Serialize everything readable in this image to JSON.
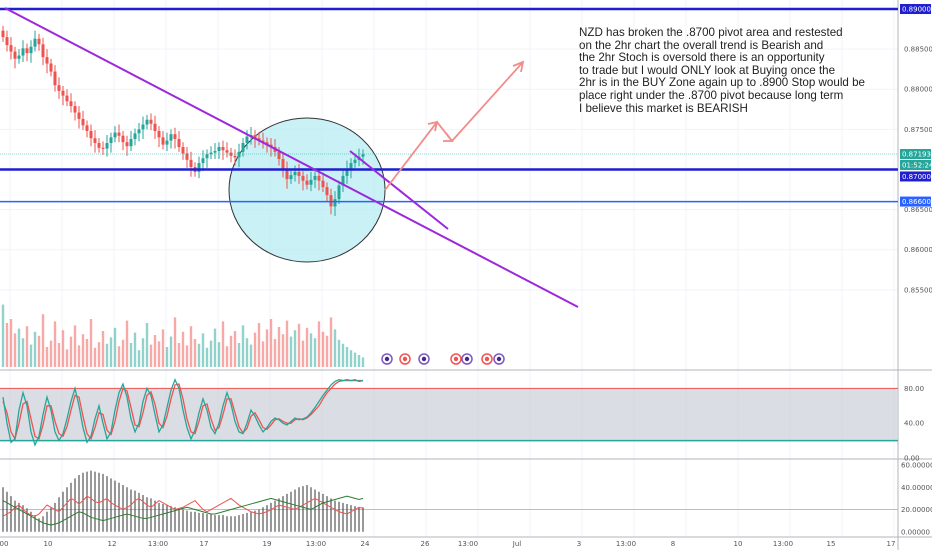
{
  "annotation": "NZD has broken the .8700 pivot area and restested\non the 2hr chart the overall trend is Bearish and\nthe 2hr Stoch is oversold there is an opportunity\nto trade but I would ONLY look at Buying once the\n2hr is in the BUY Zone again up to .8900 Stop would be\nplace right under the .8700 pivot because long term\nI believe this market is BEARISH",
  "colors": {
    "up": "#26a69a",
    "down": "#ef5350",
    "trendline": "#9c27dc",
    "level": "#1f1fd0",
    "level_light": "#2962ff",
    "projection": "#f28b8b",
    "circle_fill": "#b2ebf2",
    "stoch_k": "#26a69a",
    "stoch_d": "#ef5350",
    "stoch_band": "#d1d4dc"
  },
  "chart_data": {
    "type": "candlestick",
    "symbol": "NZD",
    "price_range": [
      0.8475,
      0.8905
    ],
    "price_ticks": [
      "0.88500",
      "0.88000",
      "0.87500",
      "0.86500",
      "0.86000",
      "0.85500"
    ],
    "price_tags": [
      {
        "label": "0.89000",
        "price": 0.89,
        "color": "#1f1fd0"
      },
      {
        "label": "0.87193",
        "price": 0.87193,
        "color": "#26a69a"
      },
      {
        "label": "01:52:24",
        "price": 0.8707,
        "color": "#26a69a"
      },
      {
        "label": "0.87000",
        "price": 0.87,
        "color": "#1f1fd0"
      },
      {
        "label": "0.86600",
        "price": 0.866,
        "color": "#2962ff"
      }
    ],
    "levels": [
      0.89,
      0.87,
      0.866
    ],
    "last_price": 0.87193,
    "x_ticks": [
      "00",
      "10",
      "12",
      "13:00",
      "17",
      "19",
      "13:00",
      "24",
      "26",
      "13:00",
      "Jul",
      "3",
      "13:00",
      "8",
      "10",
      "13:00",
      "15",
      "17"
    ],
    "candles_close": [
      0.8865,
      0.8855,
      0.8847,
      0.8838,
      0.8842,
      0.8851,
      0.8845,
      0.8853,
      0.8863,
      0.8856,
      0.884,
      0.8832,
      0.8822,
      0.8805,
      0.8798,
      0.8792,
      0.8785,
      0.8779,
      0.8771,
      0.8763,
      0.8755,
      0.8748,
      0.8739,
      0.8733,
      0.8727,
      0.8726,
      0.8733,
      0.874,
      0.8746,
      0.8742,
      0.8734,
      0.8729,
      0.8738,
      0.8745,
      0.875,
      0.8756,
      0.8762,
      0.8757,
      0.8748,
      0.874,
      0.8731,
      0.8736,
      0.8744,
      0.8738,
      0.8728,
      0.872,
      0.8712,
      0.8703,
      0.8697,
      0.8708,
      0.8714,
      0.8719,
      0.8721,
      0.8723,
      0.8728,
      0.8724,
      0.8721,
      0.8717,
      0.8715,
      0.8722,
      0.8733,
      0.8741,
      0.8743,
      0.8739,
      0.8736,
      0.8734,
      0.8731,
      0.8728,
      0.8722,
      0.8713,
      0.87,
      0.8688,
      0.8693,
      0.8697,
      0.8692,
      0.8686,
      0.8681,
      0.8687,
      0.8692,
      0.8686,
      0.8678,
      0.8668,
      0.8654,
      0.8663,
      0.868,
      0.8692,
      0.8701,
      0.8708,
      0.8712,
      0.8716,
      0.8719
    ],
    "volume": [
      0.78,
      0.55,
      0.6,
      0.42,
      0.48,
      0.36,
      0.51,
      0.28,
      0.44,
      0.39,
      0.66,
      0.25,
      0.33,
      0.57,
      0.3,
      0.46,
      0.22,
      0.38,
      0.52,
      0.27,
      0.41,
      0.35,
      0.6,
      0.24,
      0.31,
      0.45,
      0.29,
      0.37,
      0.49,
      0.26,
      0.34,
      0.58,
      0.3,
      0.43,
      0.21,
      0.36,
      0.55,
      0.28,
      0.4,
      0.32,
      0.47,
      0.25,
      0.38,
      0.62,
      0.3,
      0.44,
      0.27,
      0.51,
      0.35,
      0.29,
      0.42,
      0.24,
      0.33,
      0.48,
      0.31,
      0.57,
      0.26,
      0.39,
      0.45,
      0.3,
      0.52,
      0.36,
      0.28,
      0.43,
      0.55,
      0.32,
      0.47,
      0.6,
      0.35,
      0.5,
      0.41,
      0.58,
      0.38,
      0.46,
      0.54,
      0.33,
      0.49,
      0.42,
      0.36,
      0.57,
      0.44,
      0.39,
      0.62,
      0.47,
      0.34,
      0.29,
      0.25,
      0.21,
      0.18,
      0.15,
      0.12
    ],
    "stoch": {
      "axis_ticks": [
        "80.00",
        "40.00",
        "0.00"
      ],
      "upper": 80,
      "lower": 20,
      "k": [
        70,
        40,
        18,
        22,
        55,
        75,
        60,
        30,
        15,
        25,
        50,
        70,
        55,
        30,
        20,
        28,
        45,
        65,
        80,
        60,
        35,
        18,
        25,
        45,
        60,
        40,
        22,
        30,
        55,
        75,
        85,
        70,
        45,
        30,
        40,
        65,
        80,
        72,
        50,
        30,
        38,
        58,
        78,
        90,
        80,
        55,
        35,
        22,
        32,
        52,
        68,
        55,
        35,
        28,
        40,
        60,
        75,
        62,
        42,
        30,
        28,
        40,
        55,
        48,
        38,
        30,
        35,
        42,
        46,
        44,
        40,
        38,
        42,
        46,
        44,
        45,
        47,
        52,
        58,
        65,
        72,
        78,
        84,
        88,
        90,
        89,
        90,
        89,
        90,
        88,
        89
      ],
      "d": [
        65,
        52,
        30,
        22,
        40,
        62,
        65,
        45,
        25,
        22,
        38,
        60,
        60,
        42,
        28,
        25,
        36,
        55,
        72,
        70,
        48,
        28,
        22,
        35,
        52,
        50,
        32,
        27,
        42,
        65,
        80,
        77,
        58,
        38,
        36,
        52,
        72,
        76,
        62,
        40,
        35,
        48,
        68,
        84,
        85,
        68,
        45,
        30,
        28,
        42,
        60,
        62,
        45,
        32,
        35,
        50,
        68,
        68,
        52,
        36,
        29,
        34,
        48,
        52,
        44,
        35,
        33,
        38,
        44,
        45,
        42,
        40,
        40,
        44,
        45,
        44,
        46,
        50,
        55,
        60,
        68,
        75,
        80,
        85,
        88,
        89,
        89,
        89,
        89,
        89,
        89
      ]
    },
    "osc": {
      "axis_ticks": [
        "60.00000",
        "40.00000",
        "20.00000",
        "0.00000"
      ],
      "hist": [
        40,
        36,
        32,
        28,
        26,
        24,
        21,
        18,
        15,
        12,
        14,
        18,
        22,
        26,
        31,
        36,
        40,
        44,
        48,
        51,
        53,
        54,
        55,
        54,
        53,
        52,
        50,
        48,
        46,
        44,
        42,
        40,
        38,
        37,
        35,
        33,
        31,
        30,
        28,
        26,
        25,
        24,
        23,
        22,
        21,
        20,
        19,
        18,
        18,
        17,
        17,
        16,
        16,
        15,
        15,
        15,
        14,
        14,
        14,
        15,
        16,
        17,
        18,
        19,
        20,
        22,
        24,
        26,
        28,
        30,
        32,
        34,
        36,
        38,
        40,
        41,
        42,
        40,
        38,
        36,
        34,
        32,
        30,
        28,
        27,
        26,
        25,
        24,
        23,
        22,
        22
      ],
      "red": [
        14,
        16,
        18,
        22,
        24,
        20,
        17,
        15,
        14,
        16,
        20,
        24,
        22,
        20,
        18,
        22,
        26,
        30,
        28,
        25,
        28,
        32,
        30,
        27,
        26,
        28,
        30,
        26,
        24,
        22,
        20,
        22,
        24,
        28,
        30,
        27,
        24,
        22,
        25,
        28,
        26,
        24,
        22,
        20,
        21,
        22,
        24,
        26,
        28,
        24,
        20,
        18,
        20,
        22,
        24,
        26,
        28,
        30,
        27,
        24,
        22,
        20,
        18,
        17,
        16,
        17,
        18,
        20,
        22,
        24,
        23,
        22,
        21,
        20,
        22,
        24,
        26,
        28,
        30,
        28,
        26,
        24,
        22,
        20,
        18,
        17,
        16,
        18,
        20,
        22,
        21
      ],
      "green": [
        28,
        26,
        24,
        22,
        20,
        18,
        16,
        14,
        12,
        10,
        8,
        7,
        6,
        7,
        8,
        10,
        12,
        14,
        16,
        18,
        17,
        15,
        13,
        12,
        11,
        10,
        11,
        12,
        13,
        14,
        15,
        16,
        15,
        14,
        13,
        12,
        12,
        13,
        14,
        15,
        16,
        17,
        18,
        19,
        20,
        21,
        22,
        21,
        20,
        19,
        18,
        17,
        16,
        16,
        17,
        18,
        19,
        20,
        21,
        22,
        23,
        24,
        25,
        26,
        27,
        28,
        29,
        30,
        29,
        28,
        27,
        26,
        25,
        24,
        23,
        22,
        21,
        20,
        22,
        24,
        26,
        27,
        28,
        29,
        30,
        31,
        32,
        31,
        30,
        29,
        30
      ],
      "level": 20
    }
  }
}
